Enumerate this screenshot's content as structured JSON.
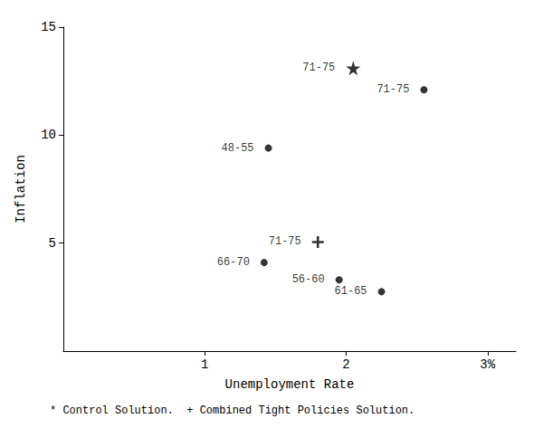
{
  "chart_data": {
    "type": "scatter",
    "xlabel": "Unemployment Rate",
    "ylabel": "Inflation",
    "xlim": [
      0,
      3.2
    ],
    "ylim": [
      0,
      15
    ],
    "xticks": [
      1,
      2,
      {
        "value": 3,
        "label": "3%"
      }
    ],
    "yticks": [
      5,
      10,
      15
    ],
    "grid": false,
    "background_color": "#ffffff",
    "series": [
      {
        "marker": "circle",
        "color": "#000000",
        "x": [
          1.45,
          1.42,
          1.95,
          2.25,
          2.55
        ],
        "values": [
          9.4,
          4.1,
          3.3,
          2.75,
          12.1
        ],
        "labels": [
          "48-55",
          "66-70",
          "56-60",
          "61-65",
          "71-75"
        ]
      },
      {
        "marker": "star",
        "color": "#000000",
        "x": [
          2.05
        ],
        "values": [
          13.1
        ],
        "labels": [
          "71-75"
        ]
      },
      {
        "marker": "plus",
        "color": "#000000",
        "x": [
          1.8
        ],
        "values": [
          5.05
        ],
        "labels": [
          "71-75"
        ]
      }
    ],
    "annotation": "* Control Solution.  + Combined Tight Policies Solution."
  }
}
